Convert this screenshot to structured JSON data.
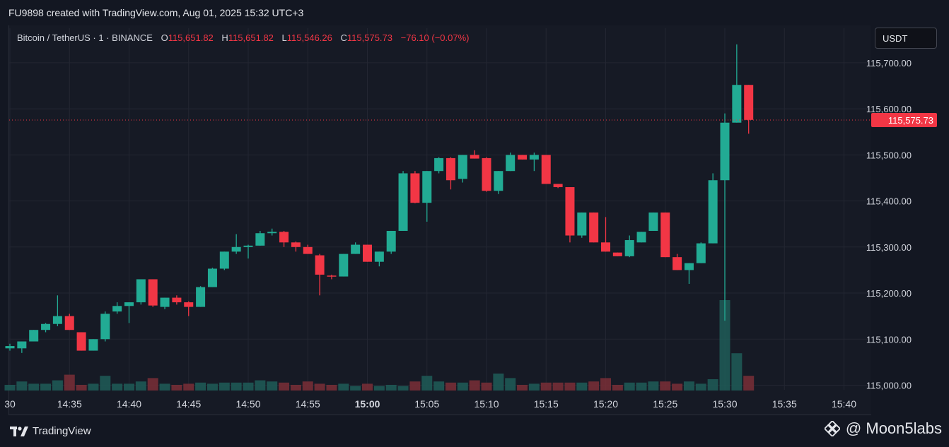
{
  "header": {
    "created_text": "FU9898 created with TradingView.com, Aug 01, 2025 15:32 UTC+3"
  },
  "legend": {
    "symbol": "Bitcoin / TetherUS · 1 · BINANCE",
    "o_label": "O",
    "o_value": "115,651.82",
    "h_label": "H",
    "h_value": "115,651.82",
    "l_label": "L",
    "l_value": "115,546.26",
    "c_label": "C",
    "c_value": "115,575.73",
    "change": "−76.10 (−0.07%)"
  },
  "currency_button": "USDT",
  "footer": {
    "brand": "TradingView",
    "watermark": "@ Moon5labs"
  },
  "colors": {
    "up": "#22ab94",
    "down": "#f23645",
    "background": "#161a25",
    "grid": "#232632",
    "text": "#d1d4dc"
  },
  "chart_data": {
    "type": "candlestick",
    "x_tick_labels": [
      "30",
      "14:35",
      "14:40",
      "14:45",
      "14:50",
      "14:55",
      "15:00",
      "15:05",
      "15:10",
      "15:15",
      "15:20",
      "15:25",
      "15:30",
      "15:35",
      "15:40"
    ],
    "y_tick_labels": [
      "115,000.00",
      "115,100.00",
      "115,200.00",
      "115,300.00",
      "115,400.00",
      "115,500.00",
      "115,600.00",
      "115,700.00"
    ],
    "ylim": [
      114990,
      115775
    ],
    "last_price_label": "115,575.73",
    "last_price": 115575.73,
    "grid": true,
    "candles": [
      {
        "t": "14:30",
        "o": 115080,
        "h": 115090,
        "l": 115075,
        "c": 115085
      },
      {
        "t": "14:31",
        "o": 115080,
        "h": 115095,
        "l": 115070,
        "c": 115095
      },
      {
        "t": "14:32",
        "o": 115095,
        "h": 115120,
        "l": 115095,
        "c": 115120
      },
      {
        "t": "14:33",
        "o": 115120,
        "h": 115135,
        "l": 115115,
        "c": 115133
      },
      {
        "t": "14:34",
        "o": 115133,
        "h": 115195,
        "l": 115128,
        "c": 115150
      },
      {
        "t": "14:35",
        "o": 115150,
        "h": 115155,
        "l": 115120,
        "c": 115120
      },
      {
        "t": "14:36",
        "o": 115115,
        "h": 115115,
        "l": 115075,
        "c": 115075
      },
      {
        "t": "14:37",
        "o": 115075,
        "h": 115100,
        "l": 115075,
        "c": 115100
      },
      {
        "t": "14:38",
        "o": 115100,
        "h": 115160,
        "l": 115095,
        "c": 115155
      },
      {
        "t": "14:39",
        "o": 115160,
        "h": 115180,
        "l": 115155,
        "c": 115172
      },
      {
        "t": "14:40",
        "o": 115172,
        "h": 115180,
        "l": 115135,
        "c": 115180
      },
      {
        "t": "14:41",
        "o": 115180,
        "h": 115230,
        "l": 115175,
        "c": 115230
      },
      {
        "t": "14:42",
        "o": 115230,
        "h": 115230,
        "l": 115170,
        "c": 115173
      },
      {
        "t": "14:43",
        "o": 115170,
        "h": 115190,
        "l": 115165,
        "c": 115190
      },
      {
        "t": "14:44",
        "o": 115190,
        "h": 115195,
        "l": 115175,
        "c": 115180
      },
      {
        "t": "14:45",
        "o": 115180,
        "h": 115182,
        "l": 115150,
        "c": 115170
      },
      {
        "t": "14:46",
        "o": 115170,
        "h": 115215,
        "l": 115170,
        "c": 115213
      },
      {
        "t": "14:47",
        "o": 115213,
        "h": 115255,
        "l": 115213,
        "c": 115253
      },
      {
        "t": "14:48",
        "o": 115253,
        "h": 115290,
        "l": 115250,
        "c": 115290
      },
      {
        "t": "14:49",
        "o": 115290,
        "h": 115328,
        "l": 115285,
        "c": 115300
      },
      {
        "t": "14:50",
        "o": 115300,
        "h": 115305,
        "l": 115275,
        "c": 115303
      },
      {
        "t": "14:51",
        "o": 115303,
        "h": 115335,
        "l": 115303,
        "c": 115330
      },
      {
        "t": "14:52",
        "o": 115330,
        "h": 115340,
        "l": 115325,
        "c": 115333
      },
      {
        "t": "14:53",
        "o": 115333,
        "h": 115335,
        "l": 115300,
        "c": 115310
      },
      {
        "t": "14:54",
        "o": 115310,
        "h": 115312,
        "l": 115290,
        "c": 115300
      },
      {
        "t": "14:55",
        "o": 115300,
        "h": 115305,
        "l": 115285,
        "c": 115285
      },
      {
        "t": "14:56",
        "o": 115282,
        "h": 115285,
        "l": 115195,
        "c": 115240
      },
      {
        "t": "14:57",
        "o": 115238,
        "h": 115240,
        "l": 115230,
        "c": 115236
      },
      {
        "t": "14:58",
        "o": 115236,
        "h": 115285,
        "l": 115236,
        "c": 115285
      },
      {
        "t": "14:59",
        "o": 115285,
        "h": 115310,
        "l": 115285,
        "c": 115305
      },
      {
        "t": "15:00",
        "o": 115305,
        "h": 115305,
        "l": 115268,
        "c": 115268
      },
      {
        "t": "15:01",
        "o": 115268,
        "h": 115290,
        "l": 115258,
        "c": 115290
      },
      {
        "t": "15:02",
        "o": 115290,
        "h": 115335,
        "l": 115285,
        "c": 115335
      },
      {
        "t": "15:03",
        "o": 115335,
        "h": 115465,
        "l": 115335,
        "c": 115460
      },
      {
        "t": "15:04",
        "o": 115460,
        "h": 115465,
        "l": 115395,
        "c": 115396
      },
      {
        "t": "15:05",
        "o": 115396,
        "h": 115465,
        "l": 115355,
        "c": 115465
      },
      {
        "t": "15:06",
        "o": 115465,
        "h": 115495,
        "l": 115460,
        "c": 115493
      },
      {
        "t": "15:07",
        "o": 115493,
        "h": 115495,
        "l": 115425,
        "c": 115445
      },
      {
        "t": "15:08",
        "o": 115448,
        "h": 115500,
        "l": 115440,
        "c": 115500
      },
      {
        "t": "15:09",
        "o": 115500,
        "h": 115510,
        "l": 115492,
        "c": 115492
      },
      {
        "t": "15:10",
        "o": 115493,
        "h": 115495,
        "l": 115420,
        "c": 115422
      },
      {
        "t": "15:11",
        "o": 115422,
        "h": 115465,
        "l": 115415,
        "c": 115465
      },
      {
        "t": "15:12",
        "o": 115465,
        "h": 115505,
        "l": 115465,
        "c": 115500
      },
      {
        "t": "15:13",
        "o": 115500,
        "h": 115500,
        "l": 115490,
        "c": 115490
      },
      {
        "t": "15:14",
        "o": 115490,
        "h": 115505,
        "l": 115465,
        "c": 115500
      },
      {
        "t": "15:15",
        "o": 115500,
        "h": 115500,
        "l": 115437,
        "c": 115437
      },
      {
        "t": "15:16",
        "o": 115437,
        "h": 115437,
        "l": 115428,
        "c": 115430
      },
      {
        "t": "15:17",
        "o": 115430,
        "h": 115430,
        "l": 115310,
        "c": 115325
      },
      {
        "t": "15:18",
        "o": 115325,
        "h": 115375,
        "l": 115320,
        "c": 115375
      },
      {
        "t": "15:19",
        "o": 115375,
        "h": 115375,
        "l": 115310,
        "c": 115310
      },
      {
        "t": "15:20",
        "o": 115310,
        "h": 115365,
        "l": 115290,
        "c": 115290
      },
      {
        "t": "15:21",
        "o": 115288,
        "h": 115288,
        "l": 115280,
        "c": 115280
      },
      {
        "t": "15:22",
        "o": 115280,
        "h": 115325,
        "l": 115278,
        "c": 115315
      },
      {
        "t": "15:23",
        "o": 115310,
        "h": 115333,
        "l": 115310,
        "c": 115333
      },
      {
        "t": "15:24",
        "o": 115335,
        "h": 115375,
        "l": 115335,
        "c": 115375
      },
      {
        "t": "15:25",
        "o": 115375,
        "h": 115375,
        "l": 115278,
        "c": 115278
      },
      {
        "t": "15:26",
        "o": 115278,
        "h": 115285,
        "l": 115250,
        "c": 115250
      },
      {
        "t": "15:27",
        "o": 115250,
        "h": 115265,
        "l": 115220,
        "c": 115265
      },
      {
        "t": "15:28",
        "o": 115265,
        "h": 115310,
        "l": 115265,
        "c": 115308
      },
      {
        "t": "15:29",
        "o": 115308,
        "h": 115460,
        "l": 115308,
        "c": 115445
      },
      {
        "t": "15:30",
        "o": 115445,
        "h": 115590,
        "l": 115140,
        "c": 115570
      },
      {
        "t": "15:31",
        "o": 115570,
        "h": 115740,
        "l": 115570,
        "c": 115652
      },
      {
        "t": "15:32",
        "o": 115652,
        "h": 115652,
        "l": 115546,
        "c": 115576
      }
    ],
    "volume": [
      0.25,
      0.4,
      0.3,
      0.3,
      0.45,
      0.7,
      0.25,
      0.3,
      0.65,
      0.3,
      0.3,
      0.4,
      0.55,
      0.3,
      0.25,
      0.3,
      0.35,
      0.3,
      0.35,
      0.35,
      0.35,
      0.45,
      0.4,
      0.35,
      0.25,
      0.4,
      0.3,
      0.25,
      0.3,
      0.2,
      0.3,
      0.2,
      0.25,
      0.2,
      0.4,
      0.65,
      0.4,
      0.35,
      0.35,
      0.45,
      0.35,
      0.75,
      0.55,
      0.25,
      0.3,
      0.35,
      0.35,
      0.35,
      0.35,
      0.4,
      0.55,
      0.25,
      0.35,
      0.35,
      0.4,
      0.4,
      0.3,
      0.4,
      0.3,
      0.5,
      4.0,
      1.65,
      0.65
    ]
  }
}
